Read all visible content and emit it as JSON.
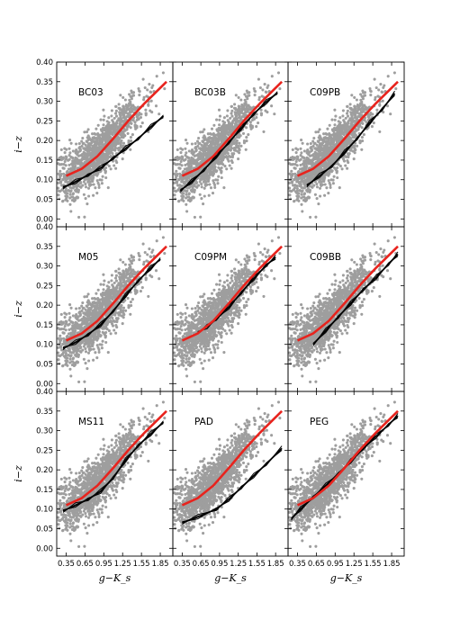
{
  "chart_data": {
    "type": "scatter",
    "layout": "3x3 grid of panels sharing axes",
    "xlabel": "g−K_s",
    "ylabel": "i−z",
    "xlim": [
      0.2,
      2.05
    ],
    "ylim": [
      -0.02,
      0.4
    ],
    "xticks": [
      "0.35",
      "0.65",
      "0.95",
      "1.25",
      "1.55",
      "1.85"
    ],
    "yticks": [
      "0.00",
      "0.05",
      "0.10",
      "0.15",
      "0.20",
      "0.25",
      "0.30",
      "0.35",
      "0.40"
    ],
    "grid": false,
    "colors": {
      "points": "#9e9e9e",
      "fit": "#e8231d",
      "model": "#000000"
    },
    "fit_line": {
      "name": "",
      "x": [
        0.35,
        0.6,
        0.85,
        1.1,
        1.35,
        1.6,
        1.95
      ],
      "y": [
        0.11,
        0.128,
        0.16,
        0.205,
        0.252,
        0.295,
        0.35
      ]
    },
    "panels": [
      {
        "label": "BC03",
        "model_x": [
          0.3,
          0.5,
          0.7,
          0.9,
          1.1,
          1.3,
          1.5,
          1.7,
          1.9
        ],
        "model_y": [
          0.08,
          0.095,
          0.112,
          0.13,
          0.155,
          0.18,
          0.205,
          0.235,
          0.262
        ]
      },
      {
        "label": "BC03B",
        "model_x": [
          0.32,
          0.5,
          0.7,
          0.9,
          1.1,
          1.3,
          1.5,
          1.7,
          1.88
        ],
        "model_y": [
          0.072,
          0.095,
          0.125,
          0.16,
          0.195,
          0.232,
          0.268,
          0.298,
          0.322
        ]
      },
      {
        "label": "C09PB",
        "model_x": [
          0.5,
          0.7,
          0.9,
          1.1,
          1.3,
          1.5,
          1.7,
          1.9
        ],
        "model_y": [
          0.085,
          0.11,
          0.135,
          0.17,
          0.205,
          0.245,
          0.28,
          0.32
        ]
      },
      {
        "label": "M05",
        "model_x": [
          0.3,
          0.5,
          0.7,
          0.9,
          1.1,
          1.3,
          1.5,
          1.7,
          1.85
        ],
        "model_y": [
          0.09,
          0.105,
          0.125,
          0.15,
          0.185,
          0.225,
          0.262,
          0.295,
          0.318
        ]
      },
      {
        "label": "C09PM",
        "model_x": [
          0.6,
          0.75,
          0.9,
          1.1,
          1.3,
          1.5,
          1.7,
          1.85
        ],
        "model_y": [
          0.13,
          0.145,
          0.165,
          0.195,
          0.232,
          0.268,
          0.302,
          0.322
        ]
      },
      {
        "label": "C09BB",
        "model_x": [
          0.6,
          0.8,
          1.0,
          1.2,
          1.4,
          1.6,
          1.8,
          1.95
        ],
        "model_y": [
          0.1,
          0.135,
          0.17,
          0.205,
          0.24,
          0.27,
          0.305,
          0.33
        ]
      },
      {
        "label": "MS11",
        "model_x": [
          0.3,
          0.5,
          0.7,
          0.9,
          1.1,
          1.3,
          1.5,
          1.7,
          1.9
        ],
        "model_y": [
          0.095,
          0.11,
          0.125,
          0.145,
          0.18,
          0.225,
          0.262,
          0.292,
          0.322
        ]
      },
      {
        "label": "PAD",
        "model_x": [
          0.35,
          0.6,
          0.9,
          1.1,
          1.3,
          1.5,
          1.7,
          1.95
        ],
        "model_y": [
          0.065,
          0.08,
          0.1,
          0.125,
          0.155,
          0.185,
          0.215,
          0.255
        ]
      },
      {
        "label": "PEG",
        "model_x": [
          0.25,
          0.4,
          0.6,
          0.8,
          1.0,
          1.2,
          1.4,
          1.6,
          1.8,
          1.95
        ],
        "model_y": [
          0.075,
          0.1,
          0.13,
          0.16,
          0.19,
          0.222,
          0.255,
          0.285,
          0.315,
          0.338
        ]
      }
    ]
  }
}
